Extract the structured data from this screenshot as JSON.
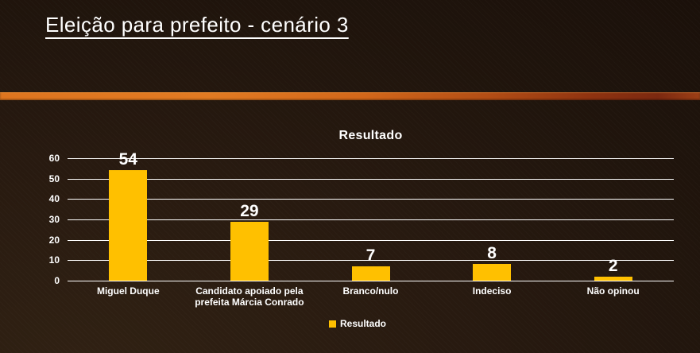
{
  "slide": {
    "title": "Eleição para prefeito - cenário 3"
  },
  "colors": {
    "bar": "#FFC000",
    "gridline": "#FFFFFF",
    "text": "#FFFFFF",
    "stripe_orange": "#E17A22",
    "stripe_dark_red": "#7C2910",
    "background_dark": "#1F140C"
  },
  "chart_data": {
    "type": "bar",
    "title": "Resultado",
    "categories": [
      "Miguel Duque",
      "Candidato apoiado pela prefeita Márcia Conrado",
      "Branco/nulo",
      "Indeciso",
      "Não opinou"
    ],
    "values": [
      54,
      29,
      7,
      8,
      2
    ],
    "xlabel": "",
    "ylabel": "",
    "ylim": [
      0,
      60
    ],
    "yticks": [
      0,
      10,
      20,
      30,
      40,
      50,
      60
    ],
    "grid": true,
    "legend": [
      "Resultado"
    ],
    "legend_position": "bottom",
    "bar_color": "#FFC000",
    "gridline_color": "#FFFFFF",
    "text_color": "#FFFFFF"
  }
}
